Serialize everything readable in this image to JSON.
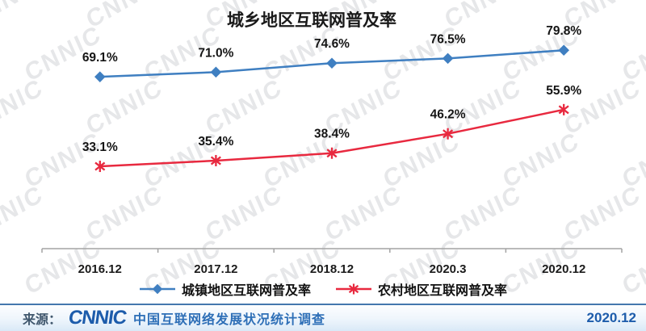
{
  "watermark": {
    "text": "CNNIC"
  },
  "chart_data": {
    "type": "line",
    "title": "城乡地区互联网普及率",
    "categories": [
      "2016.12",
      "2017.12",
      "2018.12",
      "2020.3",
      "2020.12"
    ],
    "series": [
      {
        "name": "城镇地区互联网普及率",
        "marker": "diamond",
        "color": "#3f7fc1",
        "values": [
          69.1,
          71.0,
          74.6,
          76.5,
          79.8
        ],
        "labels": [
          "69.1%",
          "71.0%",
          "74.6%",
          "76.5%",
          "79.8%"
        ]
      },
      {
        "name": "农村地区互联网普及率",
        "marker": "asterisk",
        "color": "#e8293f",
        "values": [
          33.1,
          35.4,
          38.4,
          46.2,
          55.9
        ],
        "labels": [
          "33.1%",
          "35.4%",
          "38.4%",
          "46.2%",
          "55.9%"
        ]
      }
    ],
    "xlabel": "",
    "ylabel": "",
    "ylim": [
      0,
      100
    ],
    "grid": false,
    "legend_position": "bottom"
  },
  "footer": {
    "source_prefix": "来源：",
    "logo": "CNNIC",
    "source_text": "中国互联网络发展状况统计调查",
    "date": "2020.12"
  }
}
